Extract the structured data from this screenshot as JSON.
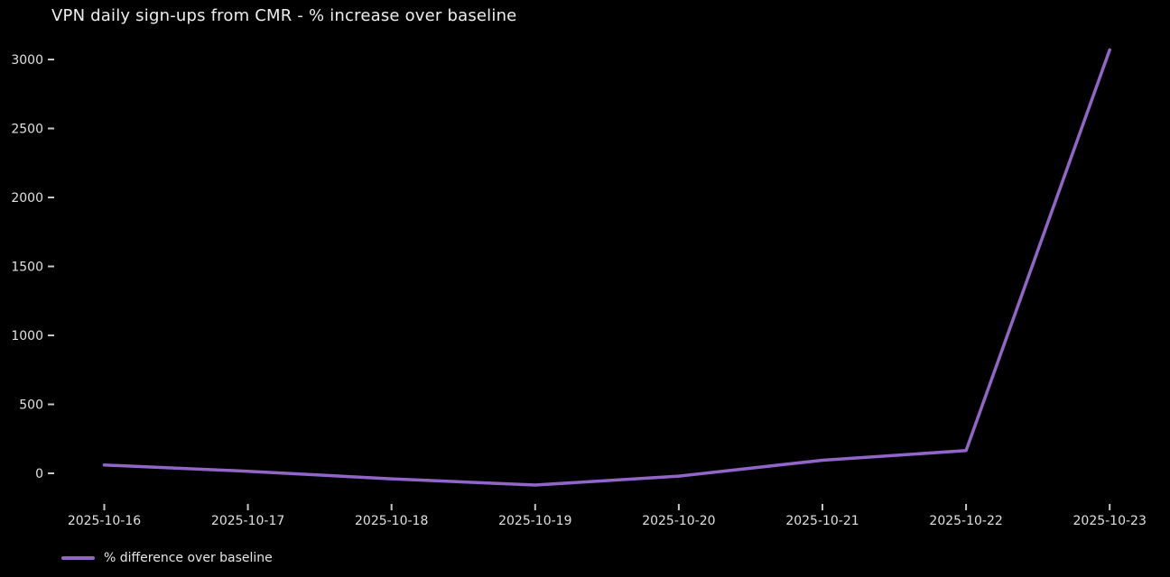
{
  "colors": {
    "background": "#000000",
    "line": "#9166c8",
    "title_text": "#eeeeee",
    "tick_text": "#e0e0e0",
    "tick_mark": "#c8c8c8"
  },
  "chart_data": {
    "type": "line",
    "title": "VPN daily sign-ups from CMR - % increase over baseline",
    "categories": [
      "2025-10-16",
      "2025-10-17",
      "2025-10-18",
      "2025-10-19",
      "2025-10-20",
      "2025-10-21",
      "2025-10-22",
      "2025-10-23"
    ],
    "series": [
      {
        "name": "% difference over baseline",
        "values": [
          60,
          15,
          -40,
          -85,
          -20,
          95,
          165,
          3070
        ]
      }
    ],
    "xlabel": "",
    "ylabel": "",
    "yticks": [
      0,
      500,
      1000,
      1500,
      2000,
      2500,
      3000
    ],
    "ylim": [
      -200,
      3200
    ],
    "grid": false,
    "legend_position": "lower left, below plot area",
    "background": "black, no spines, no gridlines"
  }
}
